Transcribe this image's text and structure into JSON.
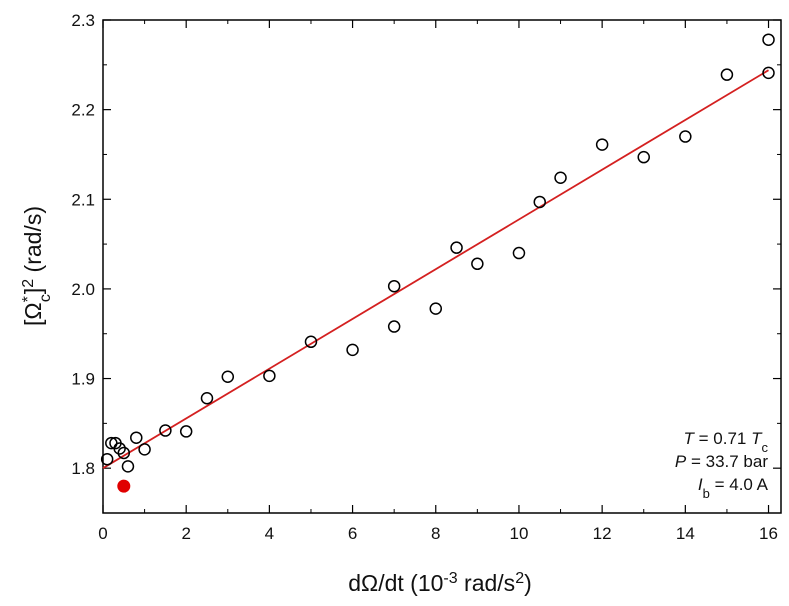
{
  "chart_data": {
    "type": "scatter",
    "xlabel": {
      "main": "dΩ/dt  (10",
      "sup": "-3",
      "unit": " rad/s",
      "unit_sup": "2",
      "close": ")"
    },
    "ylabel": {
      "open": "[Ω",
      "star": "*",
      "sub": "c",
      "close": "]",
      "sup": "2",
      "unit": "  (rad/s)"
    },
    "xlim": [
      0,
      16.3
    ],
    "ylim": [
      1.75,
      2.3
    ],
    "x_ticks": [
      0,
      2,
      4,
      6,
      8,
      10,
      12,
      14,
      16
    ],
    "x_tick_labels": [
      "0",
      "2",
      "4",
      "6",
      "8",
      "10",
      "12",
      "14",
      "16"
    ],
    "y_ticks": [
      1.8,
      1.9,
      2.0,
      2.1,
      2.2,
      2.3
    ],
    "y_tick_labels": [
      "1.8",
      "1.9",
      "2.0",
      "2.1",
      "2.2",
      "2.3"
    ],
    "grid": false,
    "series": [
      {
        "marker": "open-circle",
        "color": "#000000",
        "points": [
          {
            "x": 0.1,
            "y": 1.81
          },
          {
            "x": 0.2,
            "y": 1.828
          },
          {
            "x": 0.3,
            "y": 1.828
          },
          {
            "x": 0.4,
            "y": 1.822
          },
          {
            "x": 0.5,
            "y": 1.817
          },
          {
            "x": 0.6,
            "y": 1.802
          },
          {
            "x": 0.8,
            "y": 1.834
          },
          {
            "x": 1.0,
            "y": 1.821
          },
          {
            "x": 1.5,
            "y": 1.842
          },
          {
            "x": 2.0,
            "y": 1.841
          },
          {
            "x": 2.5,
            "y": 1.878
          },
          {
            "x": 3.0,
            "y": 1.902
          },
          {
            "x": 4.0,
            "y": 1.903
          },
          {
            "x": 5.0,
            "y": 1.941
          },
          {
            "x": 6.0,
            "y": 1.932
          },
          {
            "x": 7.0,
            "y": 1.958
          },
          {
            "x": 7.0,
            "y": 2.003
          },
          {
            "x": 8.0,
            "y": 1.978
          },
          {
            "x": 8.5,
            "y": 2.046
          },
          {
            "x": 9.0,
            "y": 2.028
          },
          {
            "x": 10.0,
            "y": 2.04
          },
          {
            "x": 10.5,
            "y": 2.097
          },
          {
            "x": 11.0,
            "y": 2.124
          },
          {
            "x": 12.0,
            "y": 2.161
          },
          {
            "x": 13.0,
            "y": 2.147
          },
          {
            "x": 14.0,
            "y": 2.17
          },
          {
            "x": 15.0,
            "y": 2.239
          },
          {
            "x": 16.0,
            "y": 2.241
          },
          {
            "x": 16.0,
            "y": 2.278
          }
        ]
      },
      {
        "marker": "filled-circle",
        "color": "#e00000",
        "points": [
          {
            "x": 0.5,
            "y": 1.78
          }
        ]
      }
    ],
    "fit_line": {
      "color": "#d42020",
      "points": [
        {
          "x": 0,
          "y": 1.8
        },
        {
          "x": 16,
          "y": 2.244
        }
      ]
    },
    "annotation": {
      "line1": {
        "var": "T",
        "rest": " = 0.71 ",
        "var2": "T",
        "sub": "c"
      },
      "line2": {
        "var": "P",
        "rest": " = 33.7 bar"
      },
      "line3": {
        "var": "I",
        "sub": "b",
        "rest": " = 4.0 A"
      },
      "placement": "bottom-right"
    }
  }
}
